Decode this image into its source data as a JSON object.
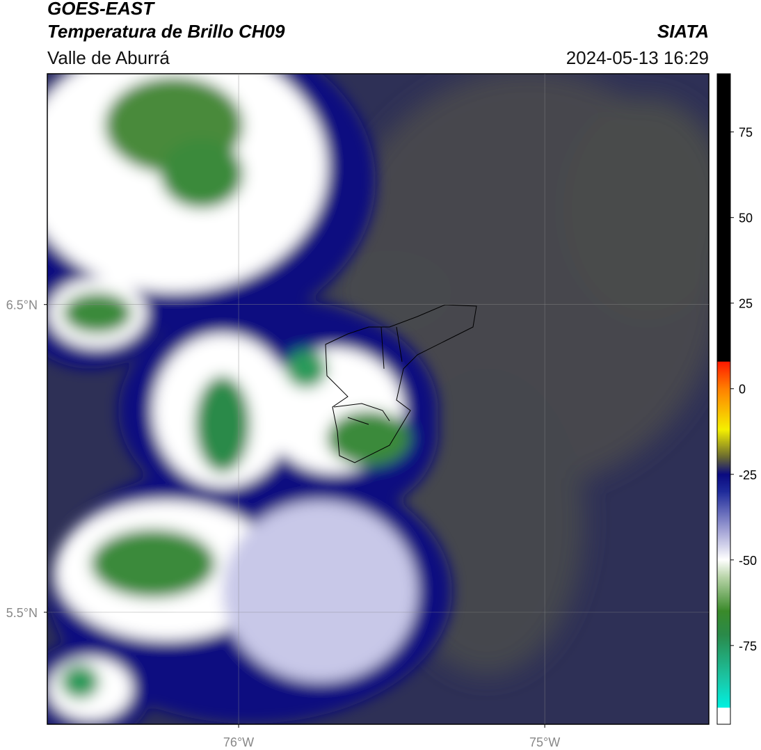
{
  "header": {
    "title": "GOES-EAST",
    "subtitle": "Temperatura de Brillo CH09",
    "location": "Valle de Aburrá",
    "source": "SIATA",
    "timestamp": "2024-05-13 16:29"
  },
  "map": {
    "xlim": [
      -76.625,
      -74.464
    ],
    "ylim": [
      5.136,
      7.25
    ],
    "xticks": [
      {
        "value": -76,
        "label": "76°W"
      },
      {
        "value": -75,
        "label": "75°W"
      }
    ],
    "yticks": [
      {
        "value": 6.5,
        "label": "6.5°N"
      },
      {
        "value": 5.5,
        "label": "5.5°N"
      }
    ],
    "grid": true
  },
  "colorbar": {
    "lim": [
      -98,
      92
    ],
    "ticks": [
      75,
      50,
      25,
      0,
      -25,
      -50,
      -75
    ]
  }
}
